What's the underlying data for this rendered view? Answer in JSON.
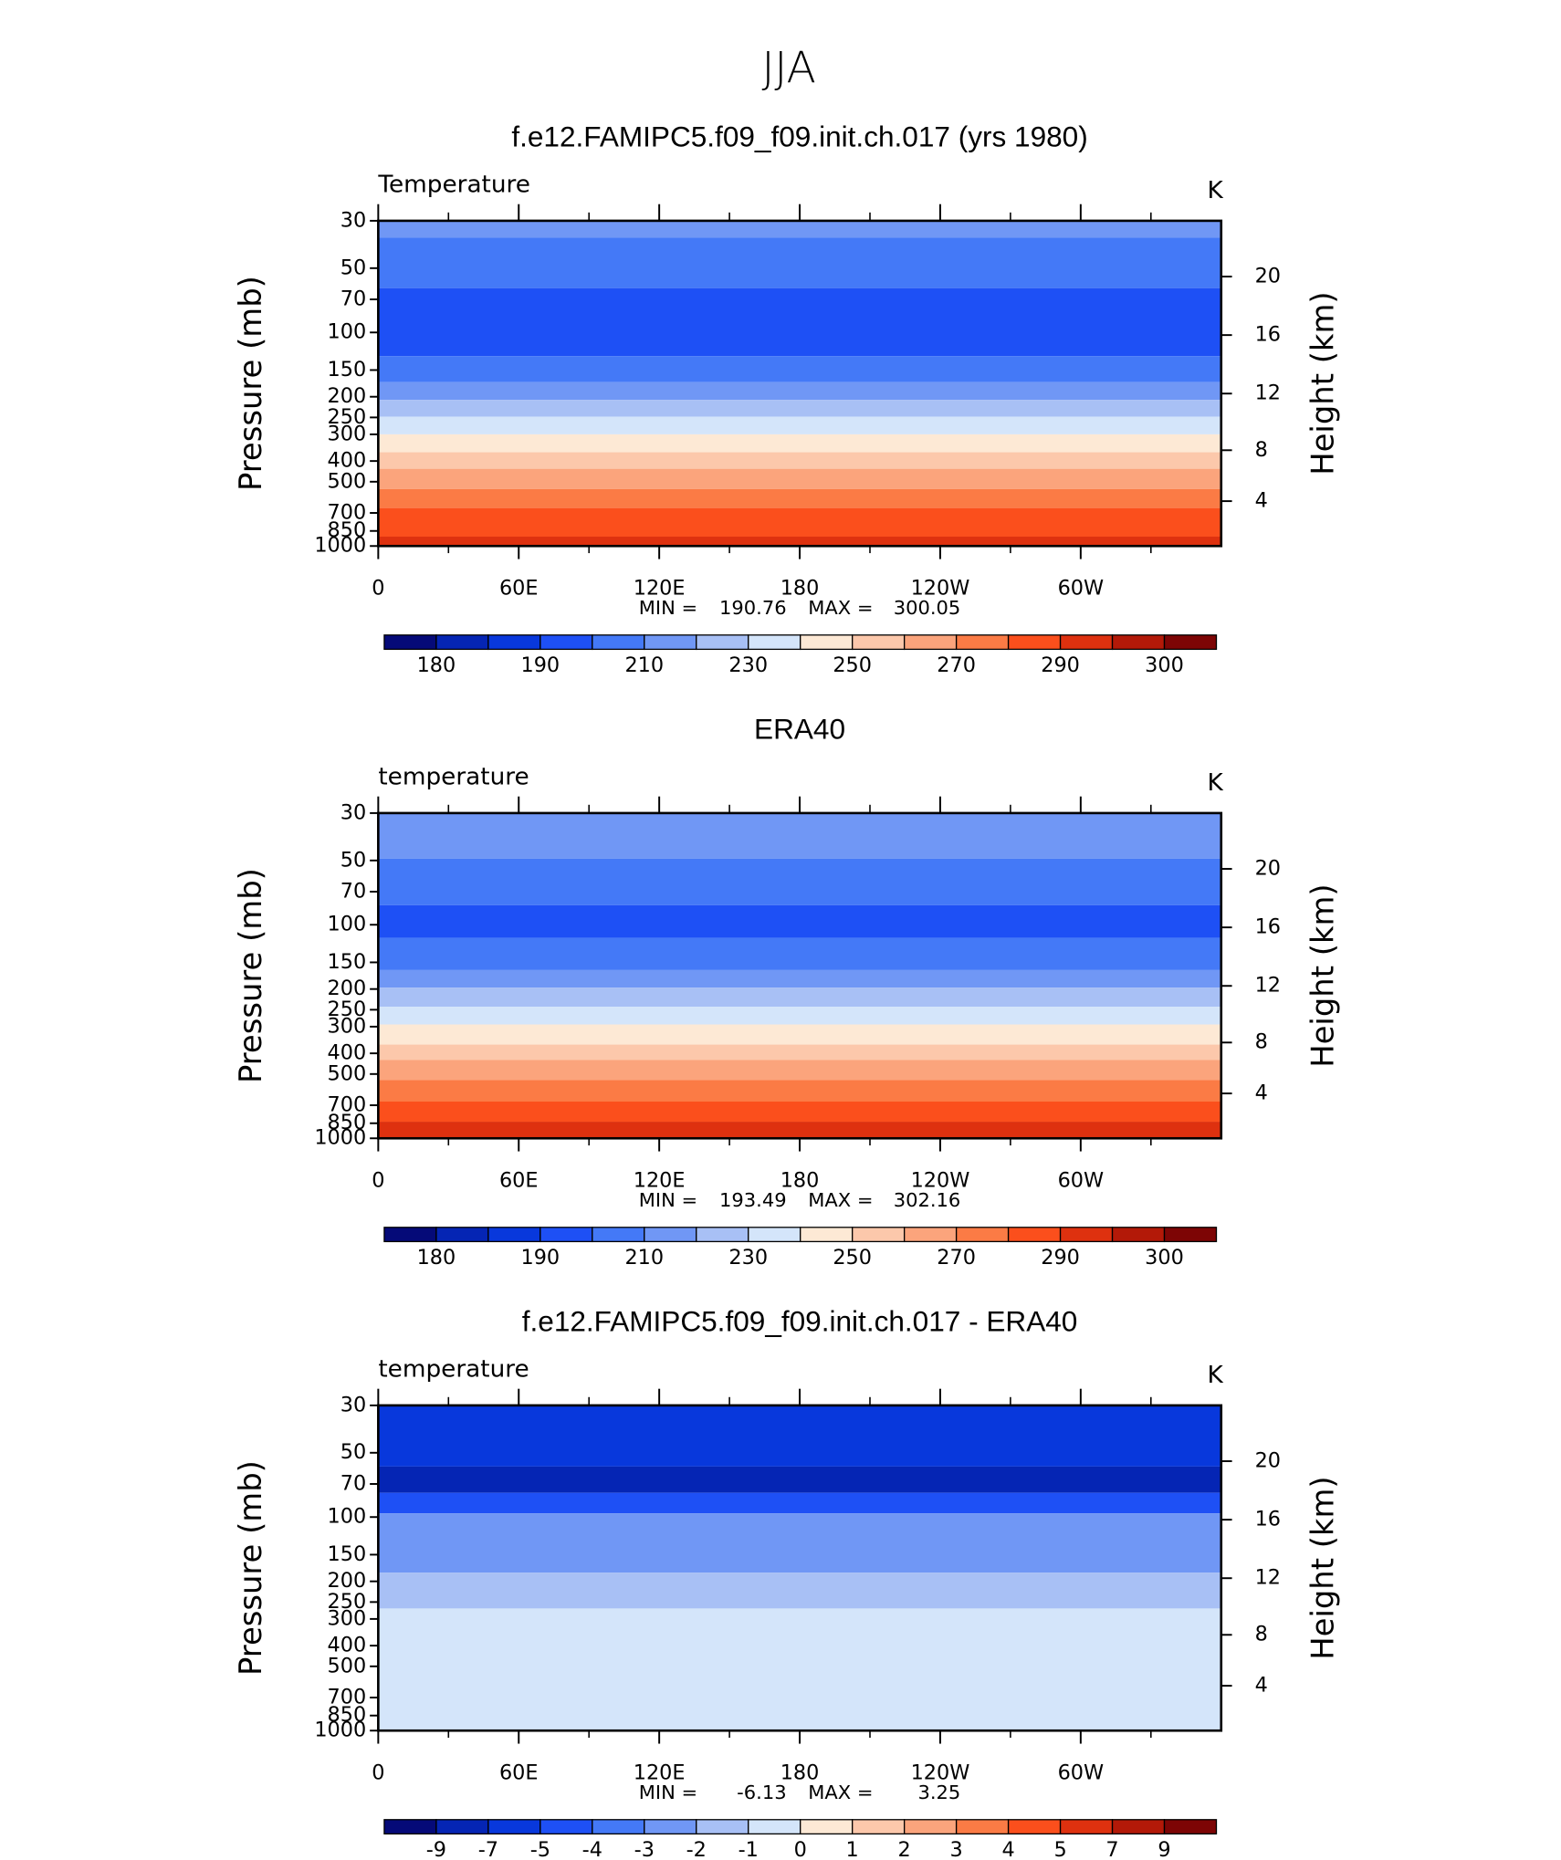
{
  "title": "JJA",
  "chart_data": [
    {
      "type": "contour",
      "title": "f.e12.FAMIPC5.f09_f09.init.ch.017 (yrs 1980)",
      "variable": "Temperature",
      "units": "K",
      "ylabel": "Pressure (mb)",
      "y2label": "Height (km)",
      "y_log": true,
      "xlim": [
        0,
        360
      ],
      "xticks": [
        0,
        {
          "value": 60,
          "label": "60E"
        },
        {
          "value": 120,
          "label": "120E"
        },
        180,
        {
          "value": 240,
          "label": "120W"
        },
        {
          "value": 300,
          "label": "60W"
        }
      ],
      "xminorticks": [
        30,
        90,
        150,
        210,
        270,
        330
      ],
      "ylim": [
        1000,
        30
      ],
      "yticks": [
        30,
        50,
        70,
        100,
        150,
        200,
        250,
        300,
        400,
        500,
        700,
        850,
        1000
      ],
      "y2ticks": [
        4,
        8,
        12,
        16,
        20
      ],
      "field": {
        "pressure_bounds": [
          30,
          36,
          62,
          129,
          171,
          207,
          248,
          300,
          364,
          435,
          541,
          664,
          904,
          1000
        ],
        "classes": [
          5,
          4,
          3,
          4,
          5,
          6,
          7,
          8,
          9,
          10,
          11,
          12,
          13
        ]
      },
      "min_label": "MIN =",
      "min": 190.76,
      "max_label": "MAX =",
      "max": 300.05,
      "colorbar": {
        "colors": [
          "#050a78",
          "#0525b4",
          "#0838dc",
          "#1e50f5",
          "#4479f7",
          "#7097f5",
          "#a8c0f5",
          "#d4e5fa",
          "#fde9d5",
          "#fcc8ab",
          "#fba47c",
          "#fb7b45",
          "#fb4f1c",
          "#de310f",
          "#b31908",
          "#7d0505"
        ],
        "labels": [
          180,
          190,
          210,
          230,
          250,
          270,
          290,
          300
        ]
      }
    },
    {
      "type": "contour",
      "title": "ERA40",
      "variable": "temperature",
      "units": "K",
      "ylabel": "Pressure (mb)",
      "y2label": "Height (km)",
      "y_log": true,
      "xlim": [
        0,
        360
      ],
      "xticks": [
        0,
        {
          "value": 60,
          "label": "60E"
        },
        {
          "value": 120,
          "label": "120E"
        },
        180,
        {
          "value": 240,
          "label": "120W"
        },
        {
          "value": 300,
          "label": "60W"
        }
      ],
      "xminorticks": [
        30,
        90,
        150,
        210,
        270,
        330
      ],
      "ylim": [
        1000,
        30
      ],
      "yticks": [
        30,
        50,
        70,
        100,
        150,
        200,
        250,
        300,
        400,
        500,
        700,
        850,
        1000
      ],
      "y2ticks": [
        4,
        8,
        12,
        16,
        20
      ],
      "field": {
        "pressure_bounds": [
          30,
          49,
          81,
          115,
          163,
          197,
          242,
          293,
          364,
          430,
          533,
          673,
          836,
          1000
        ],
        "classes": [
          5,
          4,
          3,
          4,
          5,
          6,
          7,
          8,
          9,
          10,
          11,
          12,
          13
        ]
      },
      "min_label": "MIN =",
      "min": 193.49,
      "max_label": "MAX =",
      "max": 302.16,
      "colorbar": {
        "colors": [
          "#050a78",
          "#0525b4",
          "#0838dc",
          "#1e50f5",
          "#4479f7",
          "#7097f5",
          "#a8c0f5",
          "#d4e5fa",
          "#fde9d5",
          "#fcc8ab",
          "#fba47c",
          "#fb7b45",
          "#fb4f1c",
          "#de310f",
          "#b31908",
          "#7d0505"
        ],
        "labels": [
          180,
          190,
          210,
          230,
          250,
          270,
          290,
          300
        ]
      }
    },
    {
      "type": "contour",
      "title": "f.e12.FAMIPC5.f09_f09.init.ch.017 - ERA40",
      "variable": "temperature",
      "units": "K",
      "ylabel": "Pressure (mb)",
      "y2label": "Height (km)",
      "y_log": true,
      "xlim": [
        0,
        360
      ],
      "xticks": [
        0,
        {
          "value": 60,
          "label": "60E"
        },
        {
          "value": 120,
          "label": "120E"
        },
        180,
        {
          "value": 240,
          "label": "120W"
        },
        {
          "value": 300,
          "label": "60W"
        }
      ],
      "xminorticks": [
        30,
        90,
        150,
        210,
        270,
        330
      ],
      "ylim": [
        1000,
        30
      ],
      "yticks": [
        30,
        50,
        70,
        100,
        150,
        200,
        250,
        300,
        400,
        500,
        700,
        850,
        1000
      ],
      "y2ticks": [
        4,
        8,
        12,
        16,
        20
      ],
      "field": {
        "pressure_bounds": [
          30,
          58,
          77,
          96,
          182,
          268,
          1000
        ],
        "classes": [
          2,
          1,
          3,
          5,
          6,
          7
        ]
      },
      "min_label": "MIN =",
      "min": -6.13,
      "max_label": "MAX =",
      "max": 3.25,
      "colorbar": {
        "colors": [
          "#050a78",
          "#0525b4",
          "#0838dc",
          "#1e50f5",
          "#4479f7",
          "#7097f5",
          "#a8c0f5",
          "#d4e5fa",
          "#fde9d5",
          "#fcc8ab",
          "#fba47c",
          "#fb7b45",
          "#fb4f1c",
          "#de310f",
          "#b31908",
          "#7d0505"
        ],
        "labels": [
          -9,
          -7,
          -5,
          -4,
          -3,
          -2,
          -1,
          0,
          1,
          2,
          3,
          4,
          5,
          7,
          9
        ]
      }
    }
  ]
}
